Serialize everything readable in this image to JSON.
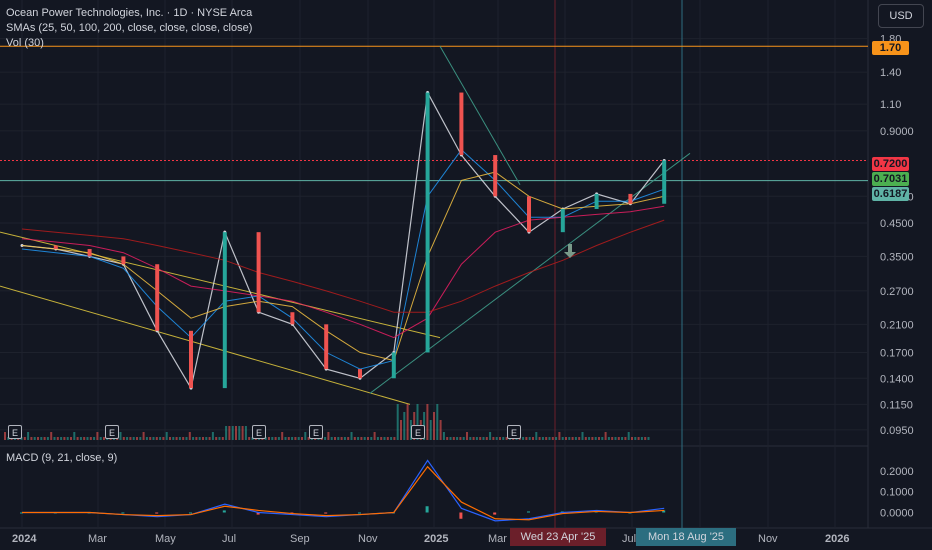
{
  "legend": {
    "symbol": "Ocean Power Technologies, Inc. · 1D · NYSE Arca",
    "smas": "SMAs (25, 50, 100, 200, close, close, close, close)",
    "vol": "Vol (30)"
  },
  "macd_legend": "MACD (9, 21, close, 9)",
  "currency": "USD",
  "price_tags": [
    {
      "label": "1.70",
      "color": "#f7931a"
    },
    {
      "label": "0.7200",
      "color": "#f23645"
    },
    {
      "label": "0.7031",
      "color": "#4caf50"
    },
    {
      "label": "0.6187",
      "color": "#5fb3a6"
    }
  ],
  "time_tags": [
    {
      "label": "Wed 23 Apr '25",
      "color": "#6b1f2a"
    },
    {
      "label": "Mon 18 Aug '25",
      "color": "#2c6e80"
    }
  ],
  "earnings_marker": "E",
  "chart_data": {
    "type": "line",
    "title": "Ocean Power Technologies, Inc. · 1D · NYSE Arca",
    "y_scale": "log",
    "price_axis_labels": [
      "1.80",
      "1.40",
      "1.10",
      "0.9000",
      "0.5500",
      "0.4500",
      "0.3500",
      "0.2700",
      "0.2100",
      "0.1700",
      "0.1400",
      "0.1150",
      "0.0950"
    ],
    "macd_axis_labels": [
      "0.2000",
      "0.1000",
      "0.0000"
    ],
    "x_axis_labels": [
      "2024",
      "Mar",
      "May",
      "Jul",
      "Sep",
      "Nov",
      "2025",
      "Mar",
      "May",
      "Jul",
      "Sep",
      "Nov",
      "2026"
    ],
    "x": [
      "2024-01",
      "2024-02",
      "2024-03",
      "2024-04",
      "2024-05",
      "2024-06",
      "2024-07",
      "2024-08",
      "2024-09",
      "2024-10",
      "2024-11",
      "2024-12",
      "2025-01",
      "2025-02",
      "2025-03",
      "2025-04",
      "2025-05",
      "2025-06",
      "2025-07",
      "2025-08"
    ],
    "series": [
      {
        "values": [
          0.38,
          0.37,
          0.35,
          0.33,
          0.2,
          0.13,
          0.42,
          0.23,
          0.21,
          0.15,
          0.14,
          0.17,
          1.2,
          0.75,
          0.55,
          0.42,
          0.5,
          0.56,
          0.52,
          0.72
        ],
        "color": "#d1d4dc"
      },
      {
        "values": [
          0.37,
          0.36,
          0.35,
          0.32,
          0.24,
          0.19,
          0.25,
          0.26,
          0.22,
          0.17,
          0.15,
          0.16,
          0.55,
          0.78,
          0.62,
          0.47,
          0.47,
          0.53,
          0.53,
          0.58
        ],
        "color": "#2196f3"
      },
      {
        "values": [
          0.38,
          0.37,
          0.36,
          0.33,
          0.27,
          0.22,
          0.24,
          0.25,
          0.24,
          0.2,
          0.17,
          0.16,
          0.35,
          0.62,
          0.66,
          0.55,
          0.5,
          0.51,
          0.52,
          0.55
        ],
        "color": "#f5c242"
      },
      {
        "values": [
          0.4,
          0.39,
          0.38,
          0.36,
          0.32,
          0.28,
          0.27,
          0.26,
          0.25,
          0.23,
          0.21,
          0.19,
          0.22,
          0.33,
          0.42,
          0.46,
          0.47,
          0.48,
          0.49,
          0.51
        ],
        "color": "#e91e63"
      },
      {
        "values": [
          0.43,
          0.42,
          0.41,
          0.4,
          0.38,
          0.36,
          0.34,
          0.31,
          0.29,
          0.27,
          0.25,
          0.23,
          0.23,
          0.25,
          0.28,
          0.31,
          0.34,
          0.38,
          0.42,
          0.46
        ],
        "color": "#b71c1c"
      }
    ],
    "horizontal_levels": [
      {
        "value": 1.7,
        "color": "#f7931a"
      },
      {
        "value": 0.72,
        "color": "#f23645"
      },
      {
        "value": 0.6187,
        "color": "#5fb3a6"
      }
    ],
    "macd": {
      "macd": [
        0.0,
        0.0,
        0.0,
        -0.01,
        -0.02,
        -0.01,
        0.04,
        0.0,
        -0.01,
        -0.02,
        -0.01,
        0.0,
        0.25,
        0.02,
        -0.04,
        -0.03,
        0.0,
        0.01,
        0.0,
        0.02
      ],
      "signal": [
        0.0,
        0.0,
        0.0,
        -0.01,
        -0.015,
        -0.01,
        0.03,
        0.01,
        -0.005,
        -0.015,
        -0.01,
        0.0,
        0.22,
        0.05,
        -0.03,
        -0.035,
        -0.005,
        0.005,
        0.0,
        0.01
      ]
    }
  }
}
